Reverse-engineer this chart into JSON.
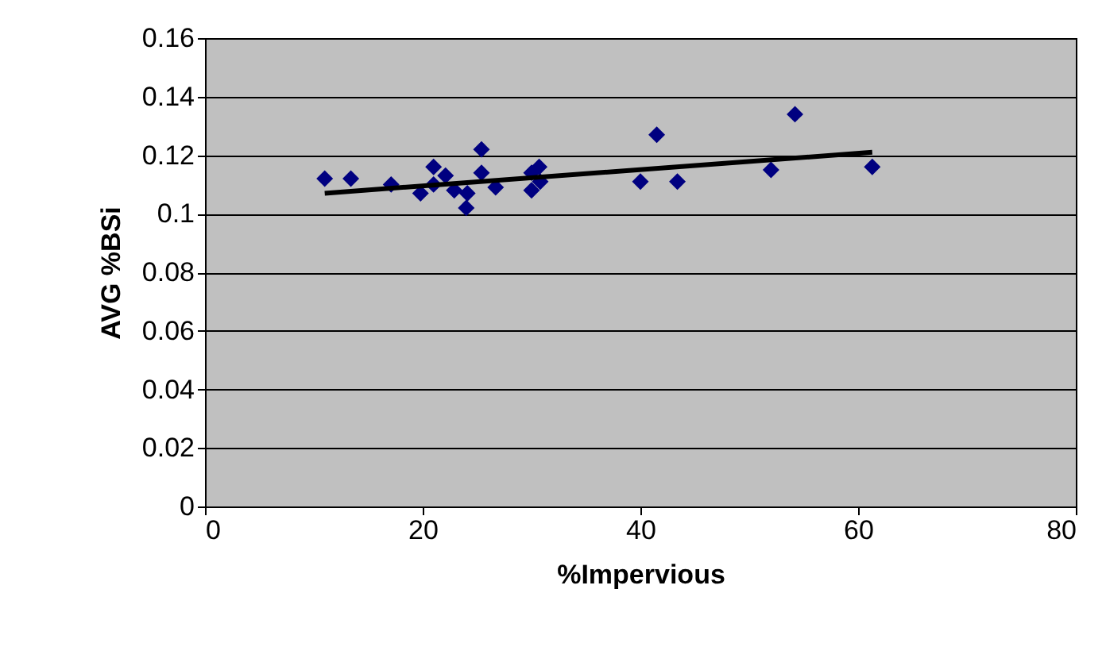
{
  "chart_data": {
    "type": "scatter",
    "xlabel": "%Impervious",
    "ylabel": "AVG %BSi",
    "xlim": [
      0,
      80
    ],
    "xticks": [
      0,
      20,
      40,
      60,
      80
    ],
    "ylim": [
      0,
      0.16
    ],
    "yticks": [
      0,
      0.02,
      0.04,
      0.06,
      0.08,
      0.1,
      0.12,
      0.14,
      0.16
    ],
    "grid": "y",
    "series": [
      {
        "color": "#000080",
        "marker": "diamond",
        "x": [
          11.0,
          13.4,
          17.1,
          19.8,
          21.0,
          21.0,
          22.1,
          22.9,
          24.0,
          24.1,
          25.4,
          25.4,
          26.7,
          30.0,
          30.0,
          30.7,
          30.8,
          40.0,
          41.5,
          43.4,
          52.0,
          54.2,
          61.3
        ],
        "values": [
          0.112,
          0.112,
          0.11,
          0.107,
          0.116,
          0.11,
          0.113,
          0.108,
          0.102,
          0.107,
          0.122,
          0.114,
          0.109,
          0.114,
          0.108,
          0.116,
          0.111,
          0.111,
          0.127,
          0.111,
          0.115,
          0.134,
          0.116
        ]
      },
      {
        "type": "line",
        "color": "#000000",
        "line_style": "solid",
        "x": [
          11.0,
          61.3
        ],
        "values": [
          0.107,
          0.121
        ]
      }
    ]
  }
}
